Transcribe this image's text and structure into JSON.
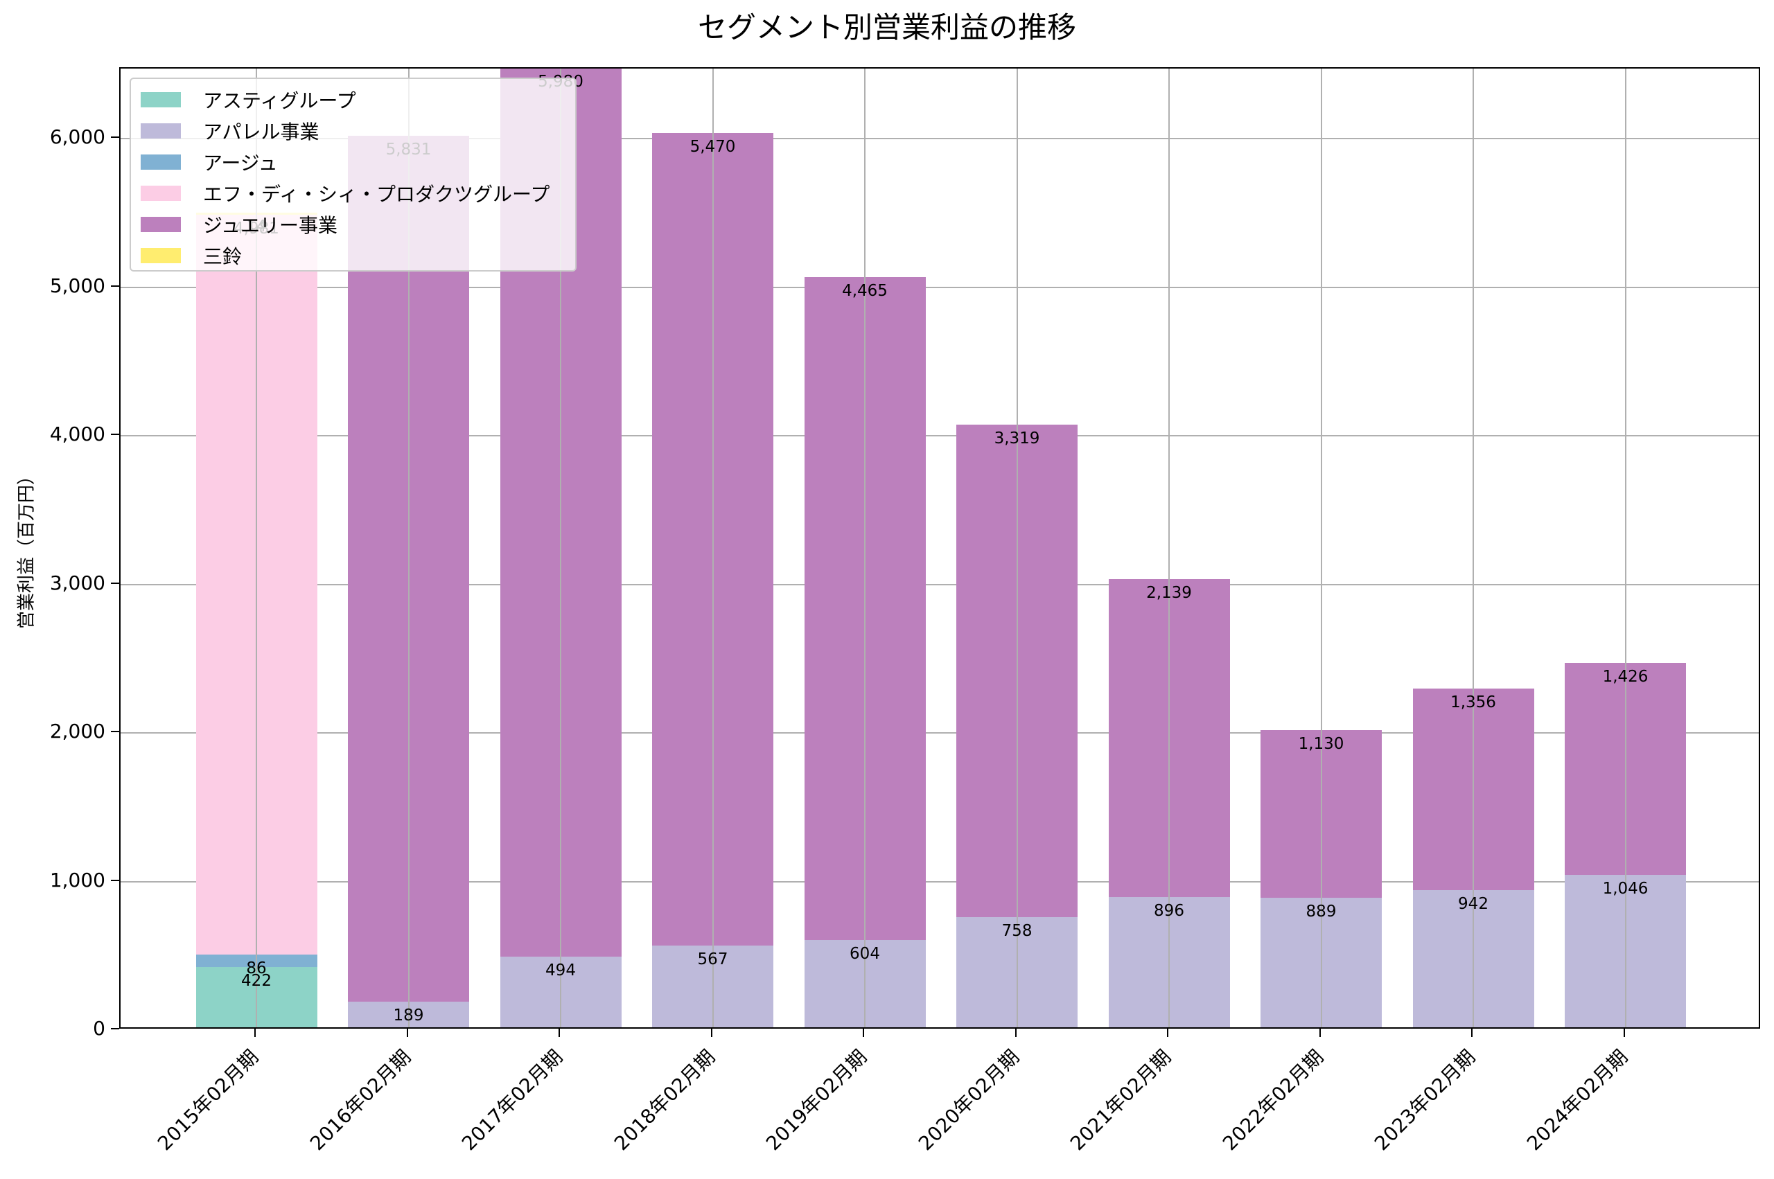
{
  "chart_data": {
    "type": "bar",
    "stacked": true,
    "title": "セグメント別営業利益の推移",
    "xlabel": "",
    "ylabel": "営業利益（百万円）",
    "ylim": [
      0,
      6471
    ],
    "yticks": [
      0,
      1000,
      2000,
      3000,
      4000,
      5000,
      6000
    ],
    "ytick_labels": [
      "0",
      "1,000",
      "2,000",
      "3,000",
      "4,000",
      "5,000",
      "6,000"
    ],
    "grid": true,
    "legend_position": "upper left",
    "categories": [
      "2015年02月期",
      "2016年02月期",
      "2017年02月期",
      "2018年02月期",
      "2019年02月期",
      "2020年02月期",
      "2021年02月期",
      "2022年02月期",
      "2023年02月期",
      "2024年02月期"
    ],
    "series": [
      {
        "name": "アスティグループ",
        "color": "#8dd3c7",
        "values": [
          422,
          0,
          0,
          0,
          0,
          0,
          0,
          0,
          0,
          0
        ]
      },
      {
        "name": "アパレル事業",
        "color": "#bebada",
        "values": [
          0,
          189,
          494,
          567,
          604,
          758,
          896,
          889,
          942,
          1046
        ]
      },
      {
        "name": "アージュ",
        "color": "#80b1d3",
        "values": [
          86,
          0,
          0,
          0,
          0,
          0,
          0,
          0,
          0,
          0
        ]
      },
      {
        "name": "エフ・ディ・シィ・プロダクツグループ",
        "color": "#fccde5",
        "values": [
          4981,
          0,
          0,
          0,
          0,
          0,
          0,
          0,
          0,
          0
        ]
      },
      {
        "name": "ジュエリー事業",
        "color": "#bc80bd",
        "values": [
          0,
          5831,
          5980,
          5470,
          4465,
          3319,
          2139,
          1130,
          1356,
          1426
        ]
      },
      {
        "name": "三鈴",
        "color": "#ffed6f",
        "values": [
          14,
          0,
          0,
          0,
          0,
          0,
          0,
          0,
          0,
          0
        ]
      }
    ]
  },
  "title": "セグメント別営業利益の推移",
  "ylabel": "営業利益（百万円）"
}
